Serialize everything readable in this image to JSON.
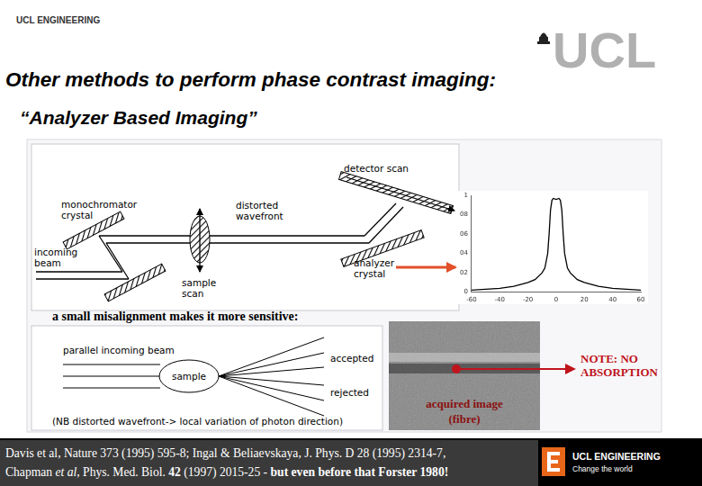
{
  "header": {
    "label": "UCL ENGINEERING",
    "logo": "UCL"
  },
  "title": "Other methods to perform phase contrast imaging:",
  "subtitle": "“Analyzer Based Imaging”",
  "setup_diagram": {
    "detector": [
      "detector scan"
    ],
    "monochromator": [
      "monochromator",
      "crystal"
    ],
    "wavefront": [
      "distorted",
      "wavefront"
    ],
    "incoming": [
      "incoming",
      "beam"
    ],
    "sample": [
      "sample",
      "scan"
    ],
    "analyzer": [
      "analyzer",
      "crystal"
    ]
  },
  "chart_data": {
    "type": "line",
    "color": "#000000",
    "grid": false,
    "x": [
      -60,
      -50,
      -40,
      -30,
      -20,
      -15,
      -10,
      -8,
      -6,
      -5,
      -4,
      -3,
      -2,
      0,
      2,
      3,
      4,
      5,
      6,
      8,
      10,
      15,
      20,
      30,
      40,
      50,
      60
    ],
    "values": [
      0.02,
      0.03,
      0.04,
      0.06,
      0.1,
      0.13,
      0.2,
      0.25,
      0.4,
      0.6,
      0.85,
      0.95,
      0.97,
      0.96,
      0.97,
      0.95,
      0.85,
      0.6,
      0.4,
      0.25,
      0.2,
      0.13,
      0.1,
      0.06,
      0.04,
      0.03,
      0.02
    ],
    "xlim": [
      -60,
      60
    ],
    "xticks": [
      -60,
      -40,
      -20,
      0,
      20,
      40,
      60
    ],
    "ylim": [
      0,
      1
    ],
    "yticks": [
      0,
      {
        "value": 0.2,
        "label": "02"
      },
      {
        "value": 0.4,
        "label": "04"
      },
      {
        "value": 0.6,
        "label": "06"
      },
      {
        "value": 0.8,
        "label": "08"
      },
      1
    ]
  },
  "caption": "a small misalignment makes it more sensitive:",
  "misalignment_diagram": {
    "beam": "parallel incoming beam",
    "sample": "sample",
    "accepted": "accepted",
    "rejected": "rejected",
    "note": "(NB distorted wavefront-> local variation of photon direction)"
  },
  "acquired_image": {
    "label": [
      "acquired image",
      "(fibre)"
    ]
  },
  "note": [
    "NOTE: NO",
    "ABSORPTION"
  ],
  "references": [
    [
      {
        "text": "Davis et al, Nature 373 (1995) 595-8; Ingal & Beliaevskaya, J. Phys. D 28 (1995) 2314-7,",
        "style": "normal"
      }
    ],
    [
      {
        "text": "Chapman ",
        "style": "normal"
      },
      {
        "text": "et al",
        "style": "italic"
      },
      {
        "text": ", Phys. Med. Biol. ",
        "style": "normal"
      },
      {
        "text": "42",
        "style": "bold"
      },
      {
        "text": " (1997) 2015-25 - ",
        "style": "normal"
      },
      {
        "text": "but even before that Forster 1980!",
        "style": "bold"
      }
    ]
  ],
  "footer_logo": {
    "name": "UCL ENGINEERING",
    "tagline": "Change the world"
  }
}
